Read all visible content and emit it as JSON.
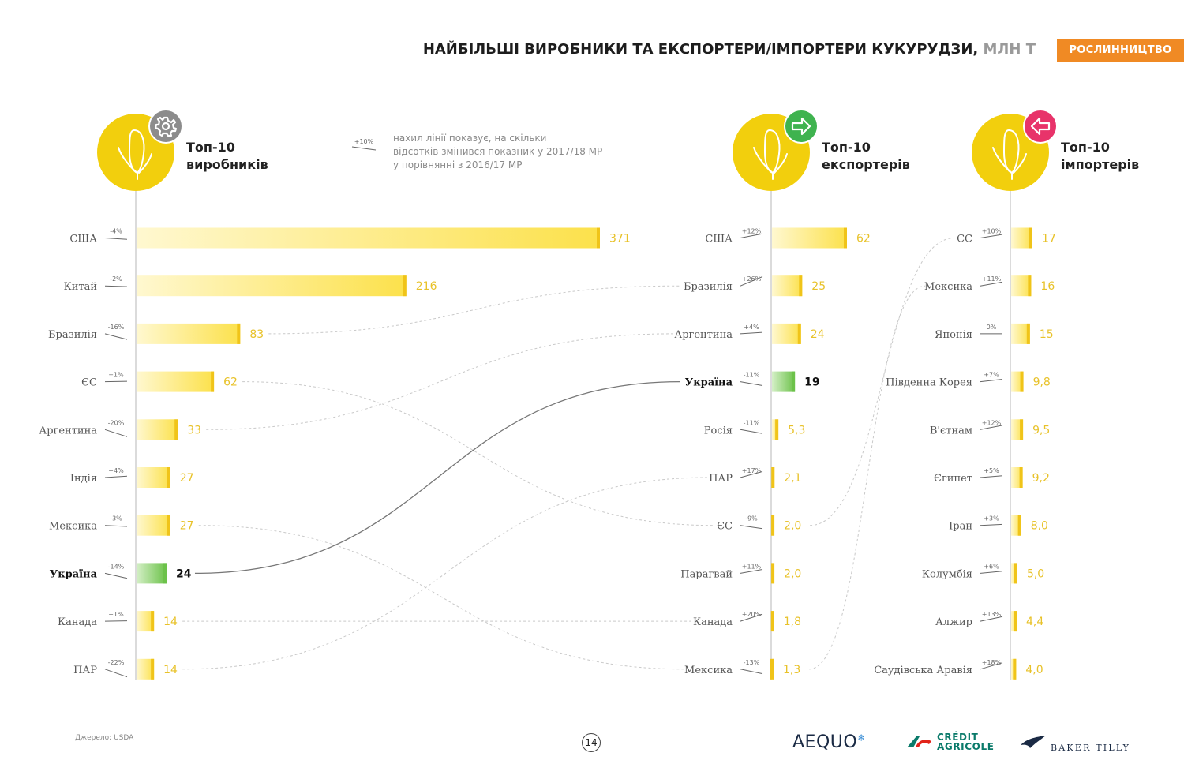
{
  "header": {
    "title": "НАЙБІЛЬШІ ВИРОБНИКИ ТА ЕКСПОРТЕРИ/ІМПОРТЕРИ КУКУРУДЗИ,",
    "unit": "МЛН Т",
    "badge": "РОСЛИННИЦТВО"
  },
  "legend": {
    "sample_change": "+10%",
    "text_line1": "нахил лінії показує, на скільки",
    "text_line2": "відсотків змінився показник у 2017/18 МР",
    "text_line3": "у порівнянні з 2016/17 МР"
  },
  "footer": {
    "source": "Джерело: USDA",
    "page_number": "14",
    "logo_aequo": "AEQUO",
    "logo_ca_line1": "CRÉDIT",
    "logo_ca_line2": "AGRICOLE",
    "logo_bt": "BAKER TILLY"
  },
  "colors": {
    "bar": "#fce14b",
    "bar_fade": "#fff8d0",
    "value_text": "#e8c22a",
    "ukraine_bar": "#6cc24a",
    "ukraine_fade": "#d4efc6",
    "circle": "#f2cf0d",
    "icon_producers": "#8c8c8c",
    "icon_exporters": "#3fb34f",
    "icon_importers": "#e8336a",
    "accent": "#f08a24",
    "connector": "#c9c9c9",
    "ukraine_connector": "#777777"
  },
  "chart_data": [
    {
      "type": "bar",
      "title": "Топ-10 виробників",
      "title_line1": "Топ-10",
      "title_line2": "виробників",
      "icon": "gear-icon",
      "categories": [
        "США",
        "Китай",
        "Бразилія",
        "ЄС",
        "Аргентина",
        "Індія",
        "Мексика",
        "Україна",
        "Канада",
        "ПАР"
      ],
      "values": [
        371,
        216,
        83,
        62,
        33,
        27,
        27,
        24,
        14,
        14
      ],
      "labels": [
        "371",
        "216",
        "83",
        "62",
        "33",
        "27",
        "27",
        "24",
        "14",
        "14"
      ],
      "changes": [
        "-4%",
        "-2%",
        "-16%",
        "+1%",
        "-20%",
        "+4%",
        "-3%",
        "-14%",
        "+1%",
        "-22%"
      ],
      "highlight": "Україна",
      "unit": "млн т"
    },
    {
      "type": "bar",
      "title": "Топ-10 експортерів",
      "title_line1": "Топ-10",
      "title_line2": "експортерів",
      "icon": "arrow-right-icon",
      "categories": [
        "США",
        "Бразилія",
        "Аргентина",
        "Україна",
        "Росія",
        "ПАР",
        "ЄС",
        "Парагвай",
        "Канада",
        "Мексика"
      ],
      "values": [
        62,
        25,
        24,
        19,
        5.3,
        2.1,
        2.0,
        2.0,
        1.8,
        1.3
      ],
      "labels": [
        "62",
        "25",
        "24",
        "19",
        "5,3",
        "2,1",
        "2,0",
        "2,0",
        "1,8",
        "1,3"
      ],
      "changes": [
        "+12%",
        "+26%",
        "+4%",
        "-11%",
        "-11%",
        "+17%",
        "-9%",
        "+11%",
        "+20%",
        "-13%"
      ],
      "highlight": "Україна",
      "unit": "млн т"
    },
    {
      "type": "bar",
      "title": "Топ-10 імпортерів",
      "title_line1": "Топ-10",
      "title_line2": "імпортерів",
      "icon": "arrow-left-icon",
      "categories": [
        "ЄС",
        "Мексика",
        "Японія",
        "Південна Корея",
        "В'єтнам",
        "Єгипет",
        "Іран",
        "Колумбія",
        "Алжир",
        "Саудівська Аравія"
      ],
      "values": [
        17,
        16,
        15,
        9.8,
        9.5,
        9.2,
        8.0,
        5.0,
        4.4,
        4.0
      ],
      "labels": [
        "17",
        "16",
        "15",
        "9,8",
        "9,5",
        "9,2",
        "8,0",
        "5,0",
        "4,4",
        "4,0"
      ],
      "changes": [
        "+10%",
        "+11%",
        "0%",
        "+7%",
        "+12%",
        "+5%",
        "+3%",
        "+6%",
        "+13%",
        "+18%"
      ],
      "highlight": "",
      "unit": "млн т"
    }
  ]
}
